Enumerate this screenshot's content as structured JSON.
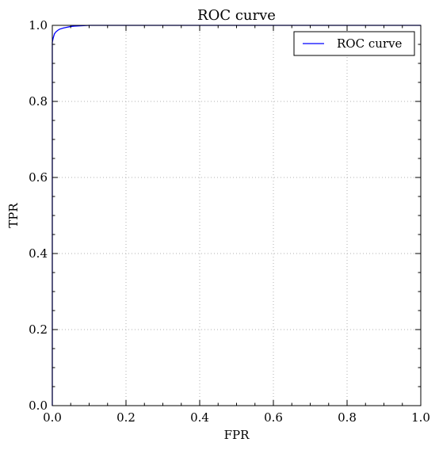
{
  "chart_data": {
    "type": "line",
    "title": "ROC curve",
    "xlabel": "FPR",
    "ylabel": "TPR",
    "xlim": [
      0.0,
      1.0
    ],
    "ylim": [
      0.0,
      1.0
    ],
    "xticks": [
      "0.0",
      "0.2",
      "0.4",
      "0.6",
      "0.8",
      "1.0"
    ],
    "yticks": [
      "0.0",
      "0.2",
      "0.4",
      "0.6",
      "0.8",
      "1.0"
    ],
    "grid": true,
    "legend_position": "top-right",
    "series": [
      {
        "name": "ROC curve",
        "color": "#0000ff",
        "x": [
          0.0,
          0.0,
          0.002,
          0.004,
          0.006,
          0.01,
          0.015,
          0.02,
          0.03,
          0.04,
          0.05,
          0.06,
          0.08,
          0.1,
          1.0
        ],
        "y": [
          0.0,
          0.955,
          0.965,
          0.972,
          0.978,
          0.983,
          0.987,
          0.99,
          0.993,
          0.995,
          0.997,
          0.998,
          0.999,
          1.0,
          1.0
        ]
      }
    ]
  }
}
